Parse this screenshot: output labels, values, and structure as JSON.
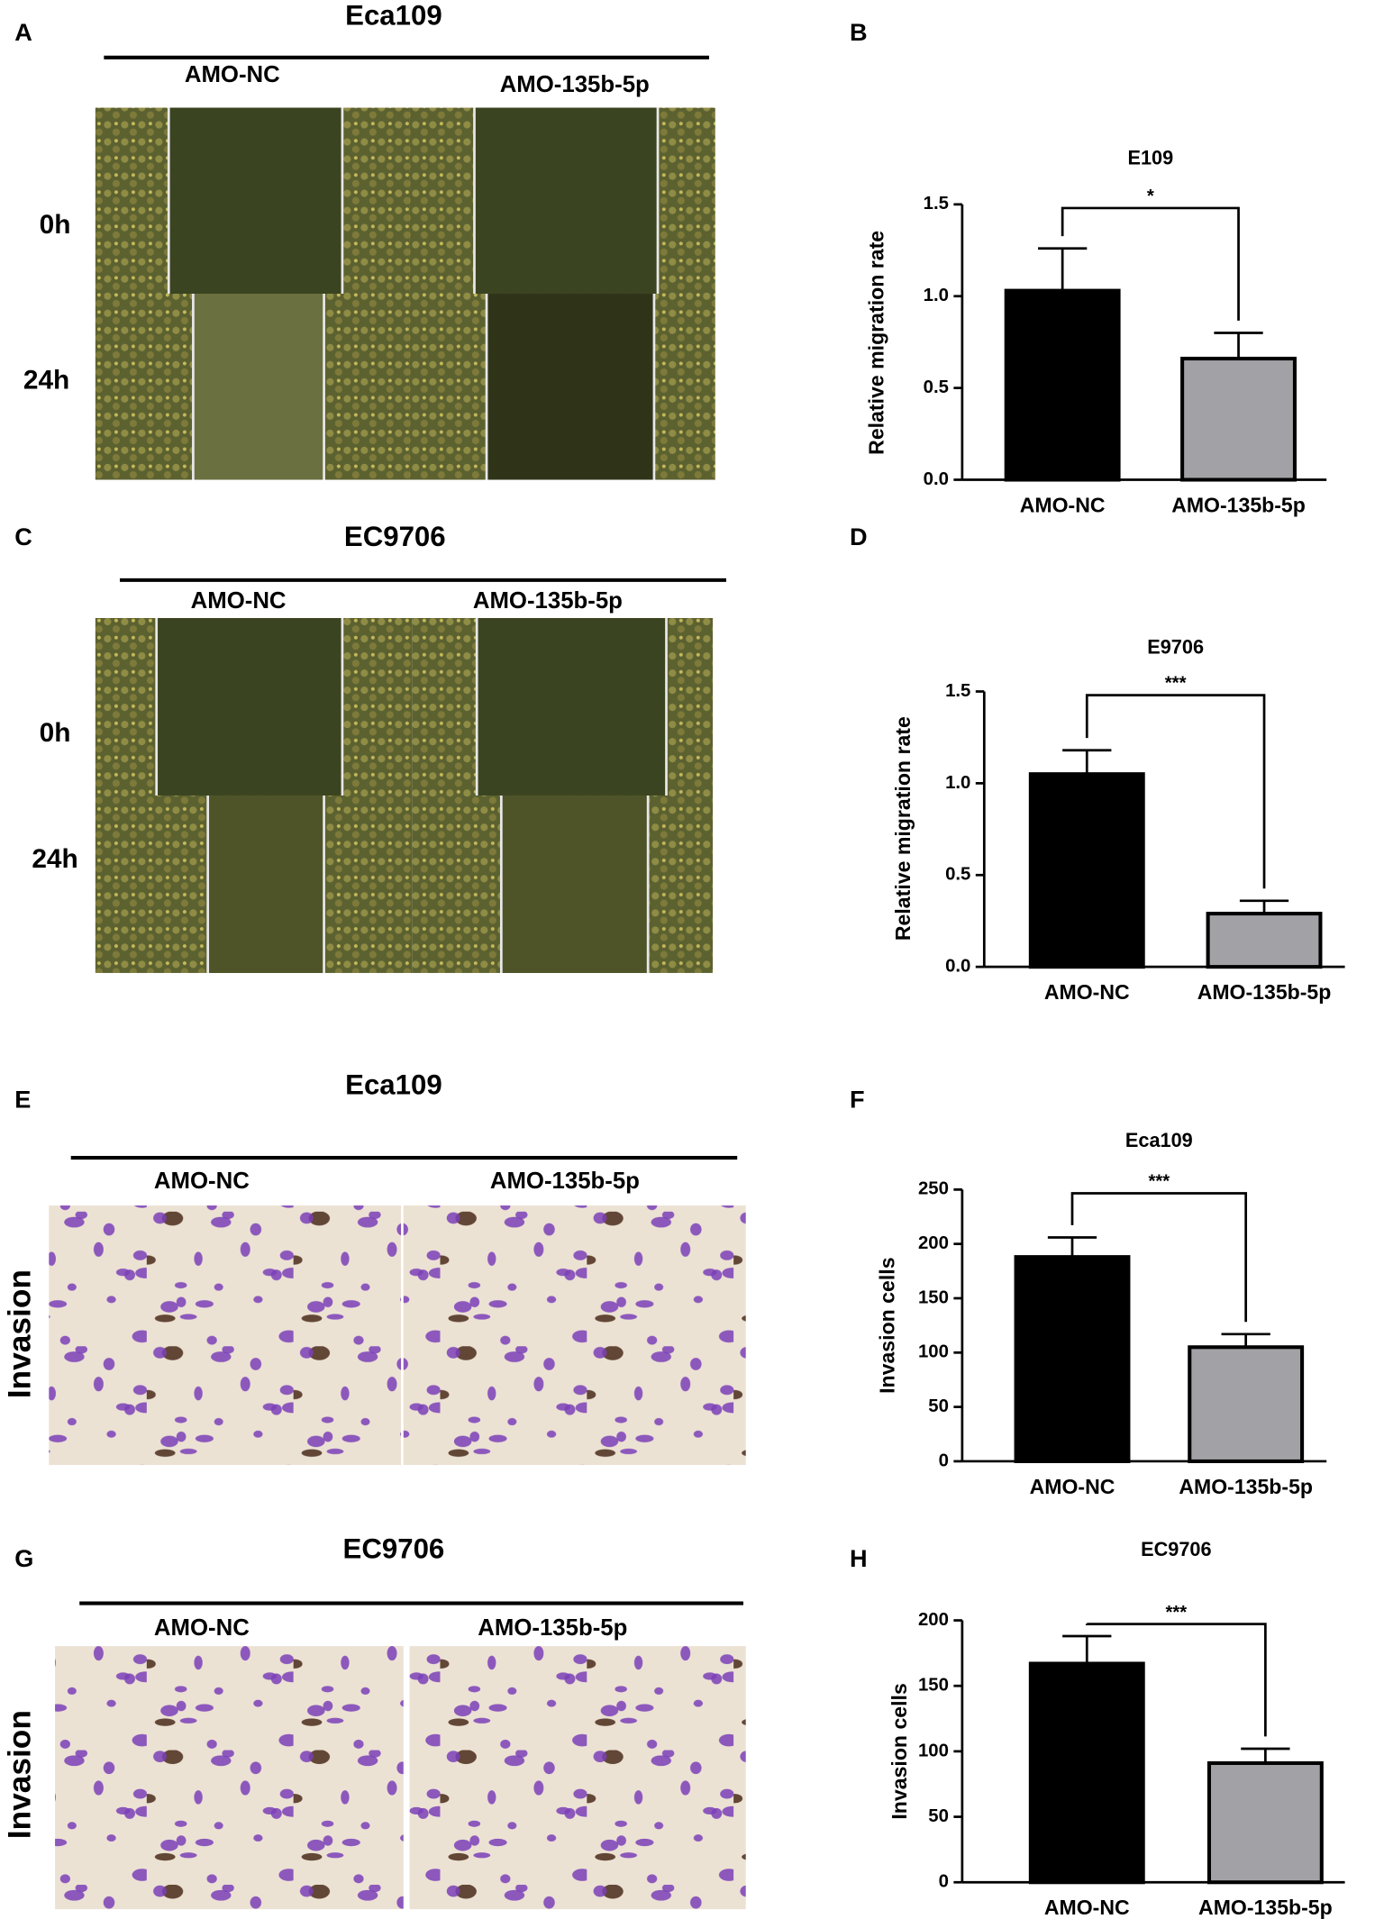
{
  "panels": [
    {
      "letter": "A",
      "title": "Eca109",
      "columns": [
        "AMO-NC",
        "AMO-135b-5p"
      ],
      "rows": [
        "0h",
        "24h"
      ]
    },
    {
      "letter": "C",
      "title": "EC9706",
      "columns": [
        "AMO-NC",
        "AMO-135b-5p"
      ],
      "rows": [
        "0h",
        "24h"
      ]
    },
    {
      "letter": "E",
      "title": "Eca109",
      "columns": [
        "AMO-NC",
        "AMO-135b-5p"
      ],
      "rows": [
        "Invasion"
      ]
    },
    {
      "letter": "G",
      "title": "EC9706",
      "columns": [
        "AMO-NC",
        "AMO-135b-5p"
      ],
      "rows": [
        "Invasion"
      ]
    }
  ],
  "chart_letters": [
    "B",
    "D",
    "F",
    "H"
  ],
  "chart_data": [
    {
      "type": "bar",
      "title": "E109",
      "y_label": "Relative migration rate",
      "categories": [
        "AMO-NC",
        "AMO-135b-5p"
      ],
      "values": [
        1.03,
        0.66
      ],
      "errors": [
        0.23,
        0.14
      ],
      "colors": [
        "#000000",
        "#a2a2a6"
      ],
      "significance": "*",
      "ylim": [
        0,
        1.5
      ],
      "yticks": [
        {
          "value": 0,
          "label": "0.0"
        },
        0.5,
        {
          "value": 1,
          "label": "1.0"
        },
        1.5
      ]
    },
    {
      "type": "bar",
      "title": "E9706",
      "y_label": "Relative migration rate",
      "categories": [
        "AMO-NC",
        "AMO-135b-5p"
      ],
      "values": [
        1.05,
        0.29
      ],
      "errors": [
        0.13,
        0.07
      ],
      "colors": [
        "#000000",
        "#a2a2a6"
      ],
      "significance": "***",
      "ylim": [
        0,
        1.5
      ],
      "yticks": [
        {
          "value": 0,
          "label": "0.0"
        },
        0.5,
        {
          "value": 1,
          "label": "1.0"
        },
        1.5
      ]
    },
    {
      "type": "bar",
      "title": "Eca109",
      "y_label": "Invasion cells",
      "categories": [
        "AMO-NC",
        "AMO-135b-5p"
      ],
      "values": [
        188,
        105
      ],
      "errors": [
        18,
        12
      ],
      "colors": [
        "#000000",
        "#a2a2a6"
      ],
      "significance": "***",
      "ylim": [
        0,
        250
      ],
      "yticks": [
        0,
        50,
        100,
        150,
        200,
        250
      ]
    },
    {
      "type": "bar",
      "title": "EC9706",
      "y_label": "Invasion cells",
      "categories": [
        "AMO-NC",
        "AMO-135b-5p"
      ],
      "values": [
        167,
        91
      ],
      "errors": [
        21,
        11
      ],
      "colors": [
        "#000000",
        "#a2a2a6"
      ],
      "significance": "***",
      "ylim": [
        0,
        200
      ],
      "yticks": [
        0,
        50,
        100,
        150,
        200
      ]
    }
  ]
}
